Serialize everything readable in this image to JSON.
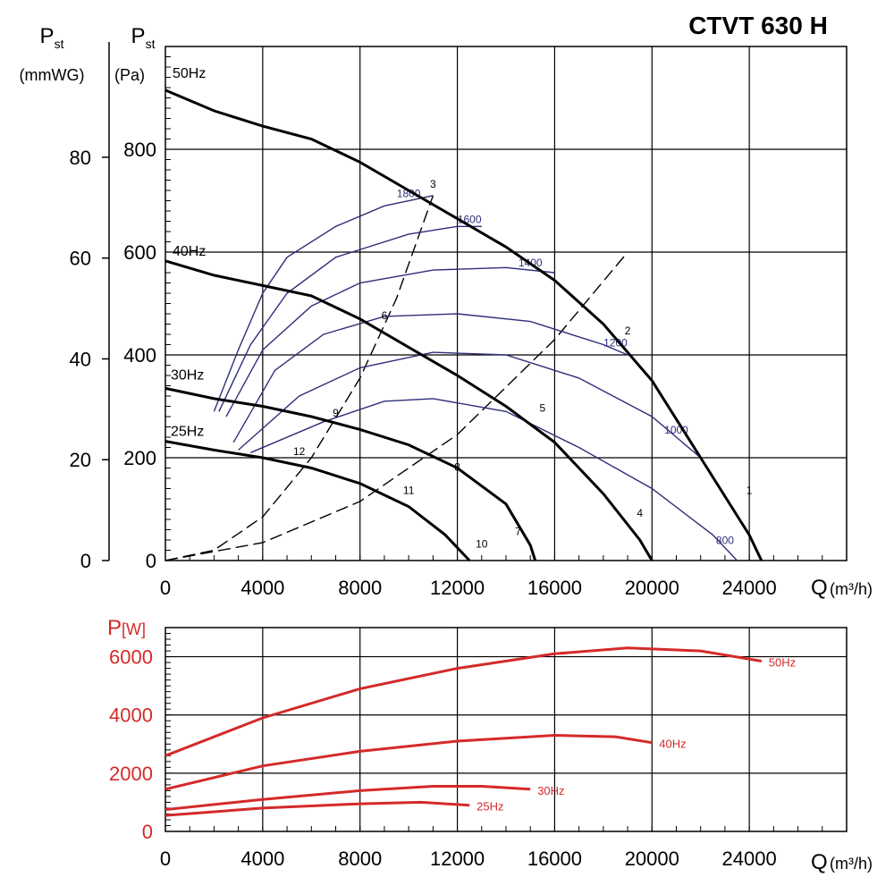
{
  "title": "CTVT 630 H",
  "colors": {
    "pressure": "#000000",
    "efficiency": "#2e2e7a",
    "power": "#d42a2a",
    "grid": "#000000"
  },
  "chart_data": [
    {
      "type": "line",
      "xlabel_main": "Q",
      "xlabel_unit": "(m³/h)",
      "ylabel_left_main": "P",
      "ylabel_left_sub": "st",
      "ylabel_left_unit": "(mmWG)",
      "ylabel_right_main": "P",
      "ylabel_right_sub": "st",
      "ylabel_right_unit": "(Pa)",
      "xlim": [
        0,
        28000
      ],
      "ylim": [
        0,
        1000
      ],
      "x_ticks": [
        0,
        4000,
        8000,
        12000,
        16000,
        20000,
        24000
      ],
      "y_ticks_pa": [
        0,
        200,
        400,
        600,
        800
      ],
      "y_ticks_mmwg": [
        0,
        20,
        40,
        60,
        80
      ],
      "grid": true,
      "series": [
        {
          "name": "50Hz",
          "style": "thick",
          "points": [
            [
              0,
              915
            ],
            [
              2000,
              875
            ],
            [
              4000,
              845
            ],
            [
              6000,
              820
            ],
            [
              8000,
              775
            ],
            [
              10000,
              720
            ],
            [
              12000,
              665
            ],
            [
              14000,
              610
            ],
            [
              16000,
              545
            ],
            [
              18000,
              460
            ],
            [
              20000,
              350
            ],
            [
              22000,
              200
            ],
            [
              24000,
              50
            ],
            [
              24500,
              0
            ]
          ]
        },
        {
          "name": "40Hz",
          "style": "thick",
          "points": [
            [
              0,
              583
            ],
            [
              2000,
              555
            ],
            [
              4000,
              535
            ],
            [
              6000,
              515
            ],
            [
              8000,
              470
            ],
            [
              10000,
              415
            ],
            [
              12000,
              360
            ],
            [
              14000,
              300
            ],
            [
              16000,
              230
            ],
            [
              18000,
              130
            ],
            [
              19500,
              40
            ],
            [
              20000,
              0
            ]
          ]
        },
        {
          "name": "30Hz",
          "style": "thick",
          "points": [
            [
              0,
              335
            ],
            [
              2000,
              315
            ],
            [
              4000,
              300
            ],
            [
              6000,
              280
            ],
            [
              8000,
              255
            ],
            [
              10000,
              225
            ],
            [
              12000,
              180
            ],
            [
              14000,
              110
            ],
            [
              15000,
              30
            ],
            [
              15200,
              0
            ]
          ]
        },
        {
          "name": "25Hz",
          "style": "thick",
          "points": [
            [
              0,
              232
            ],
            [
              2000,
              215
            ],
            [
              4000,
              200
            ],
            [
              6000,
              180
            ],
            [
              8000,
              150
            ],
            [
              10000,
              105
            ],
            [
              11500,
              50
            ],
            [
              12500,
              0
            ]
          ]
        }
      ],
      "efficiency_curves": [
        {
          "label": "1800",
          "points": [
            [
              2000,
              290
            ],
            [
              3000,
              410
            ],
            [
              4000,
              520
            ],
            [
              5000,
              590
            ],
            [
              7000,
              650
            ],
            [
              9000,
              690
            ],
            [
              11000,
              710
            ]
          ]
        },
        {
          "label": "1600",
          "points": [
            [
              2200,
              290
            ],
            [
              3500,
              420
            ],
            [
              5000,
              520
            ],
            [
              7000,
              590
            ],
            [
              10000,
              635
            ],
            [
              12000,
              650
            ],
            [
              13000,
              650
            ]
          ]
        },
        {
          "label": "1400",
          "points": [
            [
              2500,
              280
            ],
            [
              4000,
              410
            ],
            [
              6000,
              495
            ],
            [
              8000,
              540
            ],
            [
              11000,
              565
            ],
            [
              14000,
              570
            ],
            [
              16000,
              560
            ]
          ]
        },
        {
          "label": "1200",
          "points": [
            [
              2800,
              230
            ],
            [
              4500,
              370
            ],
            [
              6500,
              440
            ],
            [
              9000,
              475
            ],
            [
              12000,
              480
            ],
            [
              15000,
              465
            ],
            [
              18000,
              420
            ],
            [
              19000,
              400
            ]
          ]
        },
        {
          "label": "1000",
          "points": [
            [
              3000,
              215
            ],
            [
              5500,
              320
            ],
            [
              8000,
              375
            ],
            [
              11000,
              405
            ],
            [
              14000,
              400
            ],
            [
              17000,
              355
            ],
            [
              20000,
              280
            ],
            [
              22000,
              200
            ]
          ]
        },
        {
          "label": "800",
          "points": [
            [
              3500,
              210
            ],
            [
              6500,
              270
            ],
            [
              9000,
              310
            ],
            [
              11000,
              315
            ],
            [
              14000,
              290
            ],
            [
              17000,
              220
            ],
            [
              20000,
              140
            ],
            [
              22500,
              50
            ],
            [
              23500,
              0
            ]
          ]
        }
      ],
      "system_curves": [
        {
          "points": [
            [
              0,
              0
            ],
            [
              2000,
              20
            ],
            [
              4000,
              85
            ],
            [
              6000,
              200
            ],
            [
              8000,
              355
            ],
            [
              9500,
              510
            ],
            [
              11000,
              710
            ]
          ]
        },
        {
          "points": [
            [
              0,
              0
            ],
            [
              4000,
              35
            ],
            [
              8000,
              115
            ],
            [
              12000,
              245
            ],
            [
              16000,
              430
            ],
            [
              19000,
              600
            ]
          ]
        }
      ],
      "point_labels": [
        {
          "label": "1",
          "x": 24000,
          "y": 130
        },
        {
          "label": "2",
          "x": 19000,
          "y": 440
        },
        {
          "label": "3",
          "x": 11000,
          "y": 725
        },
        {
          "label": "4",
          "x": 19500,
          "y": 85
        },
        {
          "label": "5",
          "x": 15500,
          "y": 290
        },
        {
          "label": "6",
          "x": 9000,
          "y": 470
        },
        {
          "label": "7",
          "x": 14500,
          "y": 50
        },
        {
          "label": "8",
          "x": 12000,
          "y": 175
        },
        {
          "label": "9",
          "x": 7000,
          "y": 280
        },
        {
          "label": "10",
          "x": 13000,
          "y": 25
        },
        {
          "label": "11",
          "x": 10000,
          "y": 130
        },
        {
          "label": "12",
          "x": 5500,
          "y": 205
        }
      ]
    },
    {
      "type": "line",
      "xlabel_main": "Q",
      "xlabel_unit": "(m³/h)",
      "ylabel_main": "P",
      "ylabel_unit": "[W]",
      "xlim": [
        0,
        28000
      ],
      "ylim": [
        0,
        7000
      ],
      "x_ticks": [
        0,
        4000,
        8000,
        12000,
        16000,
        20000,
        24000
      ],
      "y_ticks": [
        0,
        2000,
        4000,
        6000
      ],
      "grid": true,
      "series": [
        {
          "name": "50Hz",
          "points": [
            [
              0,
              2600
            ],
            [
              4000,
              3900
            ],
            [
              8000,
              4900
            ],
            [
              12000,
              5600
            ],
            [
              16000,
              6100
            ],
            [
              19000,
              6300
            ],
            [
              22000,
              6200
            ],
            [
              24500,
              5850
            ]
          ]
        },
        {
          "name": "40Hz",
          "points": [
            [
              0,
              1450
            ],
            [
              4000,
              2250
            ],
            [
              8000,
              2750
            ],
            [
              12000,
              3100
            ],
            [
              16000,
              3300
            ],
            [
              18500,
              3250
            ],
            [
              20000,
              3050
            ]
          ]
        },
        {
          "name": "30Hz",
          "points": [
            [
              0,
              750
            ],
            [
              4000,
              1100
            ],
            [
              8000,
              1400
            ],
            [
              11000,
              1550
            ],
            [
              13000,
              1550
            ],
            [
              15000,
              1450
            ]
          ]
        },
        {
          "name": "25Hz",
          "points": [
            [
              0,
              550
            ],
            [
              4000,
              800
            ],
            [
              8000,
              950
            ],
            [
              10500,
              1000
            ],
            [
              12500,
              900
            ]
          ]
        }
      ]
    }
  ]
}
